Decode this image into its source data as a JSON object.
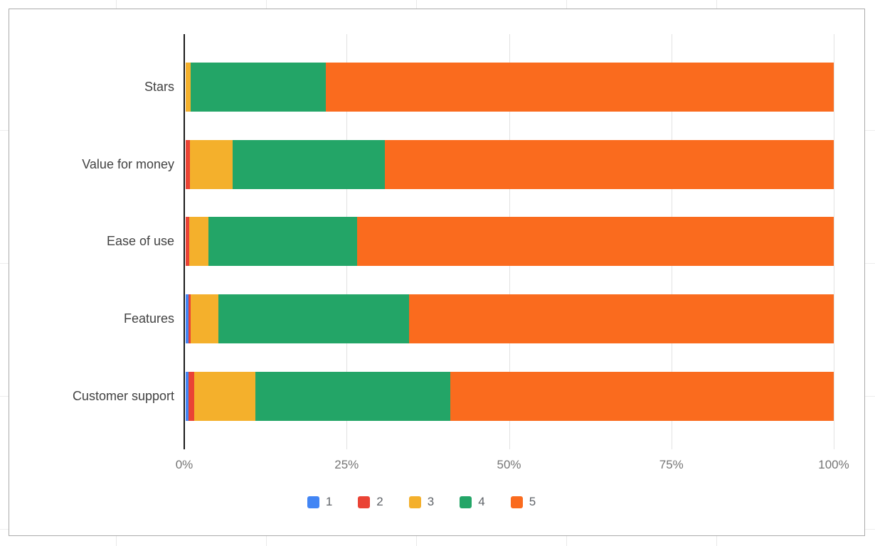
{
  "chart_data": {
    "type": "bar",
    "stacked": true,
    "orientation": "horizontal",
    "title": "",
    "xlabel": "",
    "ylabel": "",
    "xlim": [
      0,
      100
    ],
    "grid": true,
    "legend_position": "bottom",
    "categories": [
      "Stars",
      "Value for money",
      "Ease of use",
      "Features",
      "Customer support"
    ],
    "x_ticks": [
      "0%",
      "25%",
      "50%",
      "75%",
      "100%"
    ],
    "series": [
      {
        "name": "1",
        "color": "#4285F4",
        "values": [
          0,
          0,
          0,
          0.4,
          0.4
        ]
      },
      {
        "name": "2",
        "color": "#EA4335",
        "values": [
          0,
          0.7,
          0.5,
          0.4,
          0.9
        ]
      },
      {
        "name": "3",
        "color": "#F4B02C",
        "values": [
          0.8,
          6.5,
          3.0,
          4.2,
          9.5
        ]
      },
      {
        "name": "4",
        "color": "#23A567",
        "values": [
          20.8,
          23.5,
          23.0,
          29.5,
          30.0
        ]
      },
      {
        "name": "5",
        "color": "#FA6B1E",
        "values": [
          78.4,
          69.3,
          73.5,
          65.5,
          59.2
        ]
      }
    ]
  }
}
